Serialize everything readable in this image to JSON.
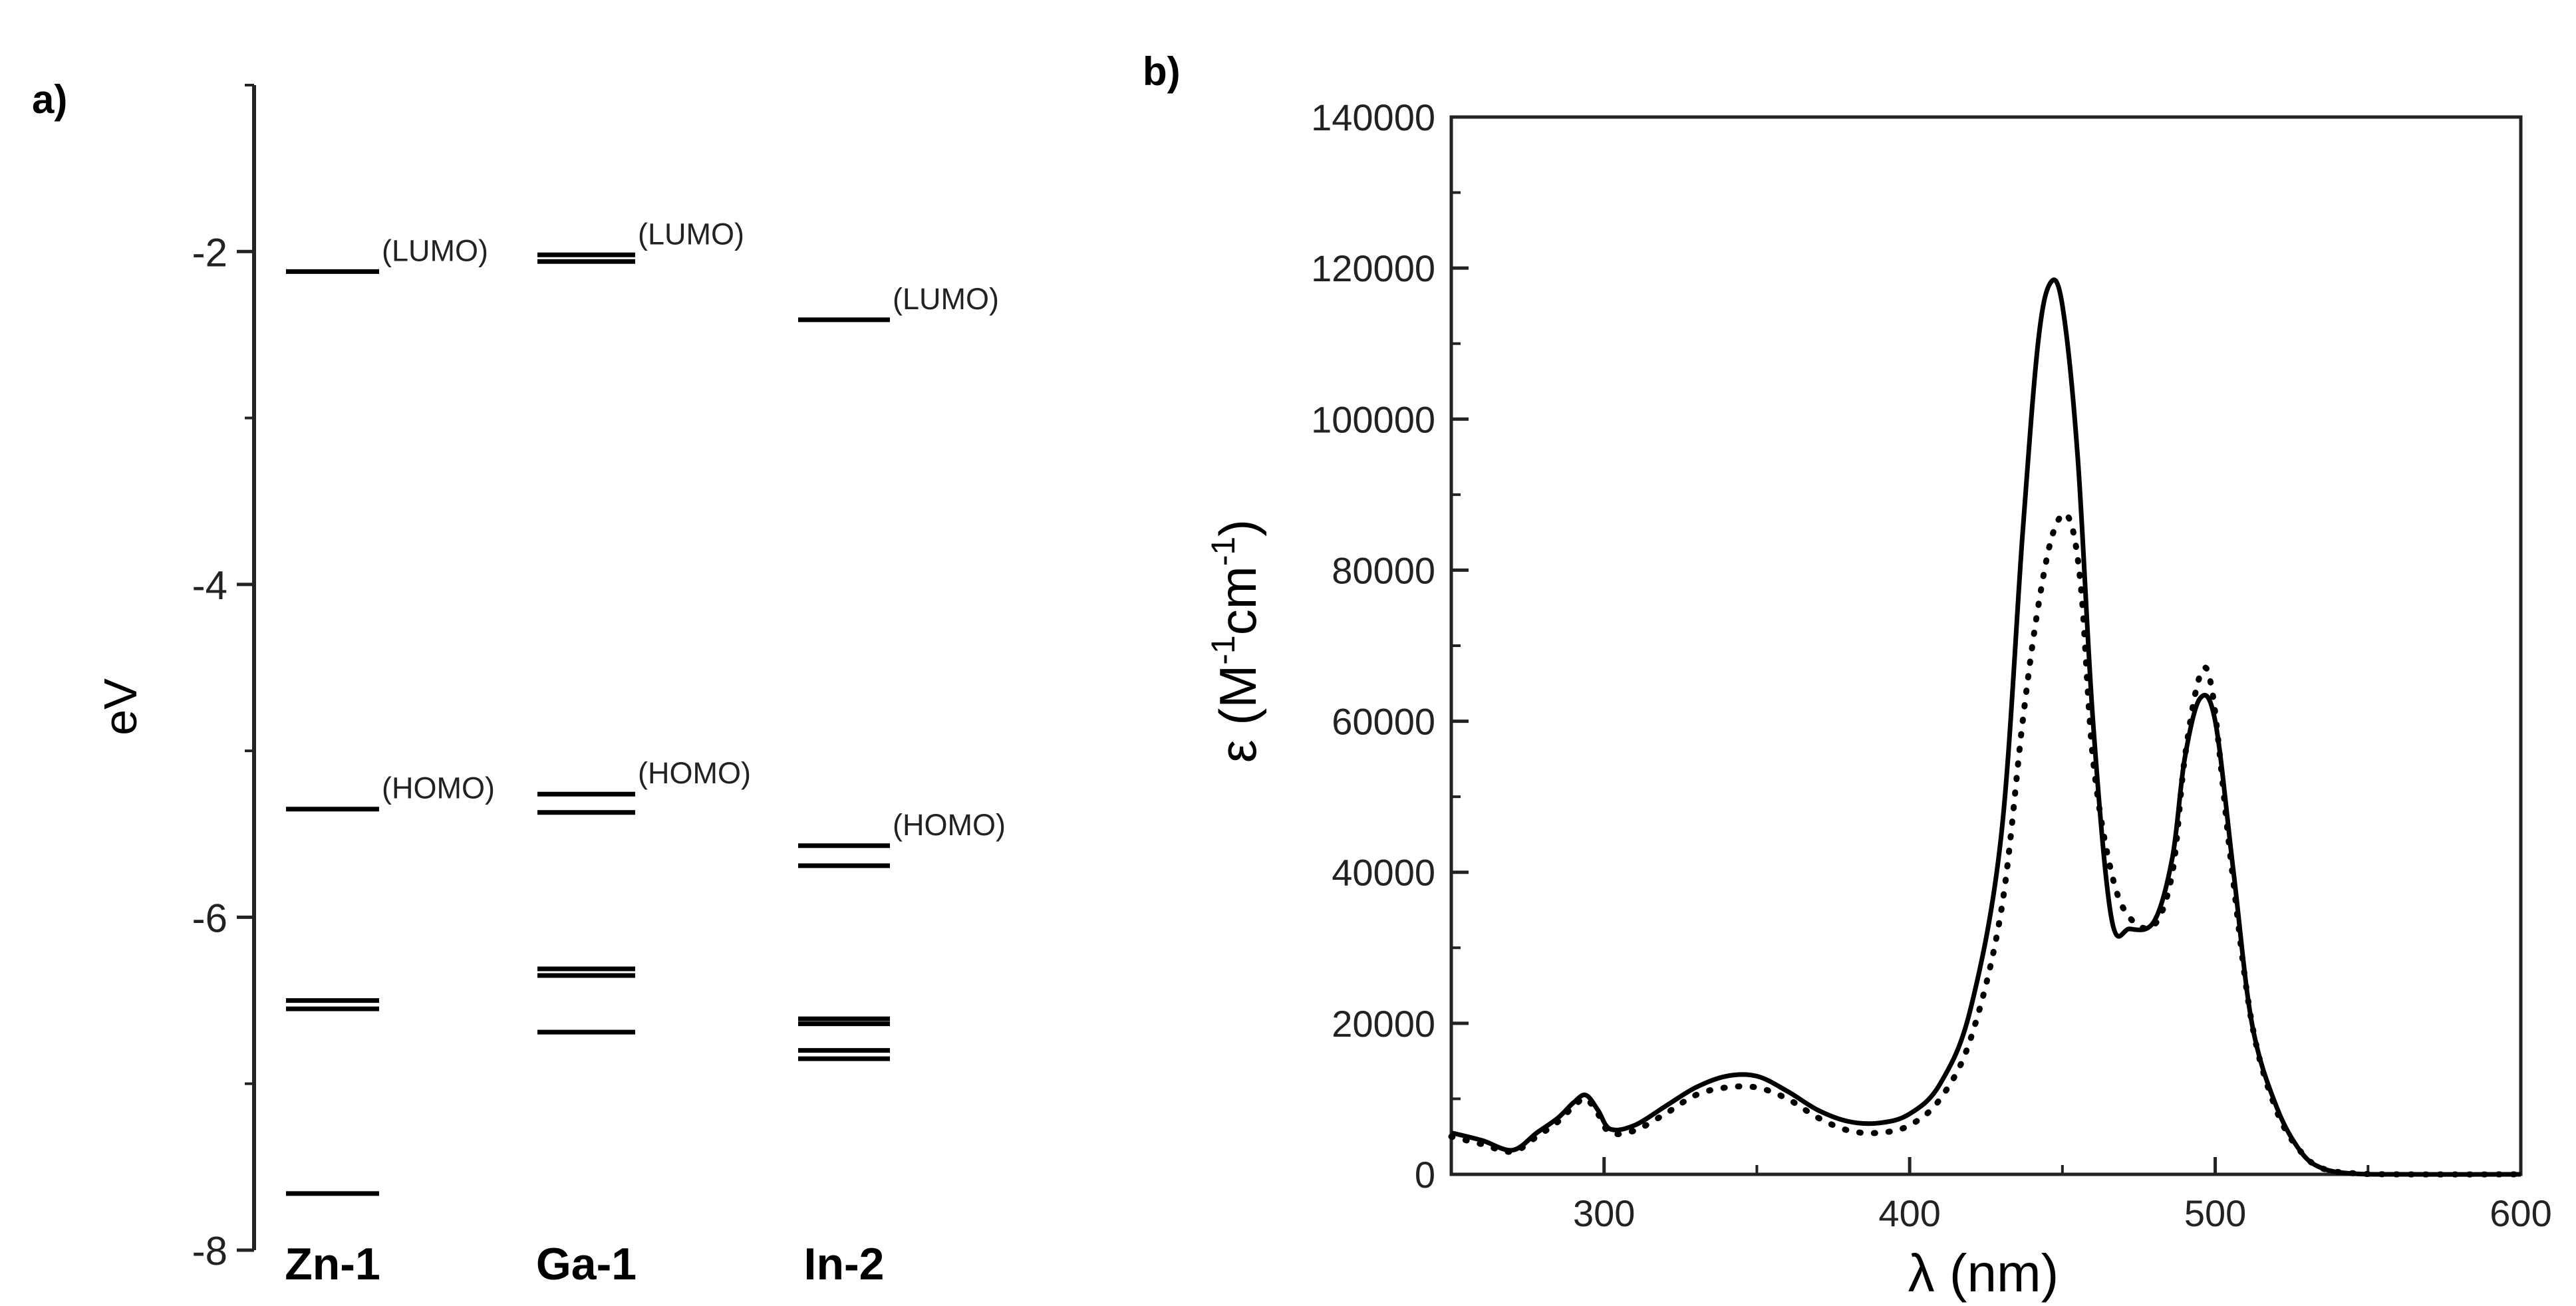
{
  "chart_data": [
    {
      "type": "energy-level-diagram",
      "panel_label": "a)",
      "ylabel": "eV",
      "ylim": [
        -8,
        -1
      ],
      "yticks": [
        -2,
        -4,
        -6,
        -8
      ],
      "columns": [
        {
          "label": "Zn-1",
          "levels": [
            {
              "energy": -2.12,
              "label": "(LUMO)"
            },
            {
              "energy": -5.35,
              "label": "(HOMO)"
            },
            {
              "energy": -6.5,
              "label": ""
            },
            {
              "energy": -6.55,
              "label": ""
            },
            {
              "energy": -7.66,
              "label": ""
            }
          ]
        },
        {
          "label": "Ga-1",
          "levels": [
            {
              "energy": -2.02,
              "label": "(LUMO)"
            },
            {
              "energy": -2.06,
              "label": ""
            },
            {
              "energy": -5.26,
              "label": "(HOMO)"
            },
            {
              "energy": -5.37,
              "label": ""
            },
            {
              "energy": -6.31,
              "label": ""
            },
            {
              "energy": -6.35,
              "label": ""
            },
            {
              "energy": -6.69,
              "label": ""
            }
          ]
        },
        {
          "label": "In-2",
          "levels": [
            {
              "energy": -2.41,
              "label": "(LUMO)"
            },
            {
              "energy": -5.57,
              "label": "(HOMO)"
            },
            {
              "energy": -5.69,
              "label": ""
            },
            {
              "energy": -6.61,
              "label": ""
            },
            {
              "energy": -6.64,
              "label": ""
            },
            {
              "energy": -6.8,
              "label": ""
            },
            {
              "energy": -6.85,
              "label": ""
            }
          ]
        }
      ]
    },
    {
      "type": "line",
      "panel_label": "b)",
      "xlabel": "λ (nm)",
      "ylabel_main": "ε (M",
      "ylabel_sup1": "-1",
      "ylabel_mid": "cm",
      "ylabel_sup2": "-1",
      "ylabel_end": ")",
      "xlim": [
        250,
        600
      ],
      "ylim": [
        0,
        140000
      ],
      "xticks": [
        300,
        400,
        500,
        600
      ],
      "yticks": [
        0,
        20000,
        40000,
        60000,
        80000,
        100000,
        120000,
        140000
      ],
      "series": [
        {
          "style": "solid",
          "points": [
            [
              250,
              5500
            ],
            [
              260,
              4500
            ],
            [
              270,
              3200
            ],
            [
              278,
              5500
            ],
            [
              285,
              7500
            ],
            [
              290,
              9500
            ],
            [
              294,
              10500
            ],
            [
              298,
              8500
            ],
            [
              302,
              6000
            ],
            [
              310,
              6500
            ],
            [
              320,
              9000
            ],
            [
              330,
              11500
            ],
            [
              340,
              13000
            ],
            [
              350,
              13000
            ],
            [
              360,
              11000
            ],
            [
              370,
              8500
            ],
            [
              380,
              7000
            ],
            [
              390,
              6800
            ],
            [
              400,
              8000
            ],
            [
              410,
              12000
            ],
            [
              420,
              22000
            ],
            [
              430,
              45000
            ],
            [
              437,
              85000
            ],
            [
              442,
              110000
            ],
            [
              446,
              118000
            ],
            [
              450,
              115000
            ],
            [
              455,
              95000
            ],
            [
              460,
              60000
            ],
            [
              466,
              34000
            ],
            [
              472,
              32500
            ],
            [
              480,
              33500
            ],
            [
              486,
              42000
            ],
            [
              490,
              55000
            ],
            [
              495,
              63000
            ],
            [
              500,
              60000
            ],
            [
              506,
              40000
            ],
            [
              512,
              20000
            ],
            [
              520,
              9000
            ],
            [
              528,
              3000
            ],
            [
              535,
              800
            ],
            [
              545,
              100
            ],
            [
              560,
              0
            ],
            [
              600,
              0
            ]
          ]
        },
        {
          "style": "dotted",
          "points": [
            [
              250,
              5000
            ],
            [
              260,
              4000
            ],
            [
              270,
              3000
            ],
            [
              278,
              5000
            ],
            [
              285,
              7000
            ],
            [
              290,
              9000
            ],
            [
              294,
              10000
            ],
            [
              298,
              8000
            ],
            [
              302,
              5500
            ],
            [
              310,
              5800
            ],
            [
              320,
              8000
            ],
            [
              330,
              10500
            ],
            [
              340,
              11500
            ],
            [
              350,
              11500
            ],
            [
              360,
              10000
            ],
            [
              370,
              7500
            ],
            [
              380,
              5800
            ],
            [
              390,
              5500
            ],
            [
              400,
              6500
            ],
            [
              410,
              10000
            ],
            [
              420,
              18000
            ],
            [
              430,
              35000
            ],
            [
              437,
              60000
            ],
            [
              442,
              75000
            ],
            [
              447,
              85000
            ],
            [
              452,
              87000
            ],
            [
              456,
              78000
            ],
            [
              460,
              55000
            ],
            [
              466,
              40000
            ],
            [
              472,
              34000
            ],
            [
              480,
              33000
            ],
            [
              486,
              40000
            ],
            [
              490,
              55000
            ],
            [
              495,
              66000
            ],
            [
              499,
              64000
            ],
            [
              505,
              42000
            ],
            [
              512,
              20000
            ],
            [
              520,
              8500
            ],
            [
              528,
              3000
            ],
            [
              535,
              800
            ],
            [
              545,
              150
            ],
            [
              560,
              0
            ],
            [
              600,
              0
            ]
          ]
        }
      ]
    }
  ]
}
